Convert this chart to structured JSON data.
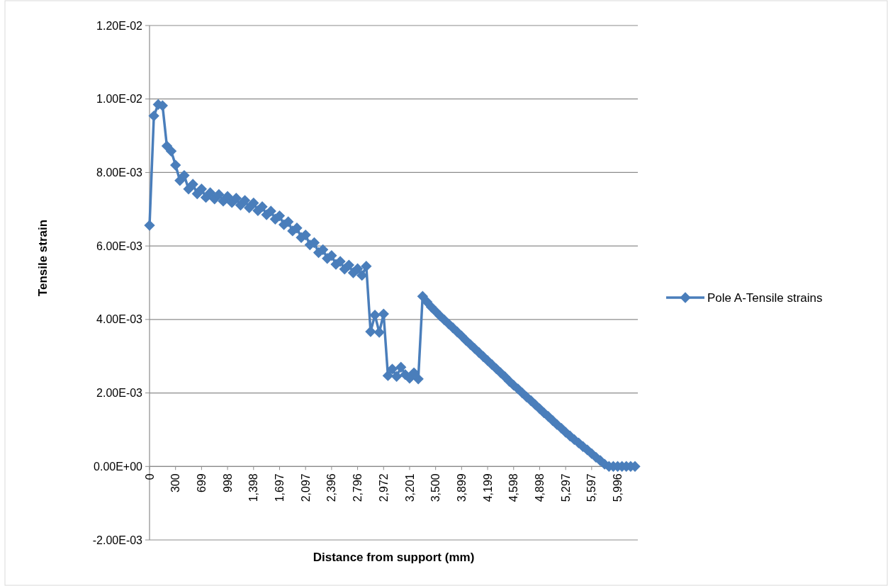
{
  "chart_data": {
    "type": "line",
    "xlabel": "Distance from support (mm)",
    "ylabel": "Tensile strain",
    "categories": [
      "0",
      null,
      null,
      null,
      null,
      null,
      "300",
      null,
      null,
      null,
      null,
      null,
      "699",
      null,
      null,
      null,
      null,
      null,
      "998",
      null,
      null,
      null,
      null,
      null,
      "1,398",
      null,
      null,
      null,
      null,
      null,
      "1,697",
      null,
      null,
      null,
      null,
      null,
      "2,097",
      null,
      null,
      null,
      null,
      null,
      "2,396",
      null,
      null,
      null,
      null,
      null,
      "2,796",
      null,
      null,
      null,
      null,
      null,
      "2,972",
      null,
      null,
      null,
      null,
      null,
      "3,201",
      null,
      null,
      null,
      null,
      null,
      "3,500",
      null,
      null,
      null,
      null,
      null,
      "3,899",
      null,
      null,
      null,
      null,
      null,
      "4,199",
      null,
      null,
      null,
      null,
      null,
      "4,598",
      null,
      null,
      null,
      null,
      null,
      "4,898",
      null,
      null,
      null,
      null,
      null,
      "5,297",
      null,
      null,
      null,
      null,
      null,
      "5,597",
      null,
      null,
      null,
      null,
      null,
      "5,996",
      null,
      null,
      null,
      null
    ],
    "series": [
      {
        "name": "Pole A-Tensile strains",
        "color": "#4a7ebb",
        "values": [
          0.00656,
          0.00954,
          0.00985,
          0.00982,
          0.00872,
          0.00858,
          0.0082,
          0.00778,
          0.00792,
          0.00755,
          0.00768,
          0.00742,
          0.00755,
          0.00732,
          0.00745,
          0.00728,
          0.0074,
          0.00722,
          0.00735,
          0.00718,
          0.0073,
          0.00711,
          0.00724,
          0.00704,
          0.00717,
          0.00696,
          0.00707,
          0.00685,
          0.00695,
          0.00673,
          0.00682,
          0.00658,
          0.00666,
          0.00641,
          0.00649,
          0.00623,
          0.0063,
          0.00603,
          0.00609,
          0.00582,
          0.0059,
          0.00566,
          0.00574,
          0.0055,
          0.00558,
          0.00537,
          0.00548,
          0.00527,
          0.00538,
          0.0052,
          0.00545,
          0.00367,
          0.00412,
          0.00365,
          0.00415,
          0.00247,
          0.00265,
          0.00245,
          0.0027,
          0.0025,
          0.0024,
          0.00255,
          0.00238,
          0.00463,
          0.00448,
          0.00434,
          0.00422,
          0.0041,
          0.00399,
          0.00388,
          0.00377,
          0.00366,
          0.00355,
          0.00343,
          0.00332,
          0.00321,
          0.0031,
          0.00299,
          0.00288,
          0.00277,
          0.00266,
          0.00255,
          0.00244,
          0.00232,
          0.00221,
          0.00211,
          0.002,
          0.00189,
          0.00179,
          0.00168,
          0.00157,
          0.00146,
          0.00136,
          0.00125,
          0.00114,
          0.00104,
          0.00093,
          0.00083,
          0.00073,
          0.00064,
          0.00054,
          0.00045,
          0.00035,
          0.00025,
          0.00016,
          6e-05,
          0,
          0,
          0,
          0,
          0,
          0,
          0
        ]
      }
    ],
    "ylim": [
      -0.002,
      0.012
    ],
    "yticks": [
      {
        "value": -0.002,
        "label": "-2.00E-03"
      },
      {
        "value": 0,
        "label": "0.00E+00"
      },
      {
        "value": 0.002,
        "label": "2.00E-03"
      },
      {
        "value": 0.004,
        "label": "4.00E-03"
      },
      {
        "value": 0.006,
        "label": "6.00E-03"
      },
      {
        "value": 0.008,
        "label": "8.00E-03"
      },
      {
        "value": 0.01,
        "label": "1.00E-02"
      },
      {
        "value": 0.012,
        "label": "1.20E-02"
      }
    ],
    "grid": "y",
    "legend": "right",
    "marker": "diamond",
    "line_style": "solid"
  }
}
